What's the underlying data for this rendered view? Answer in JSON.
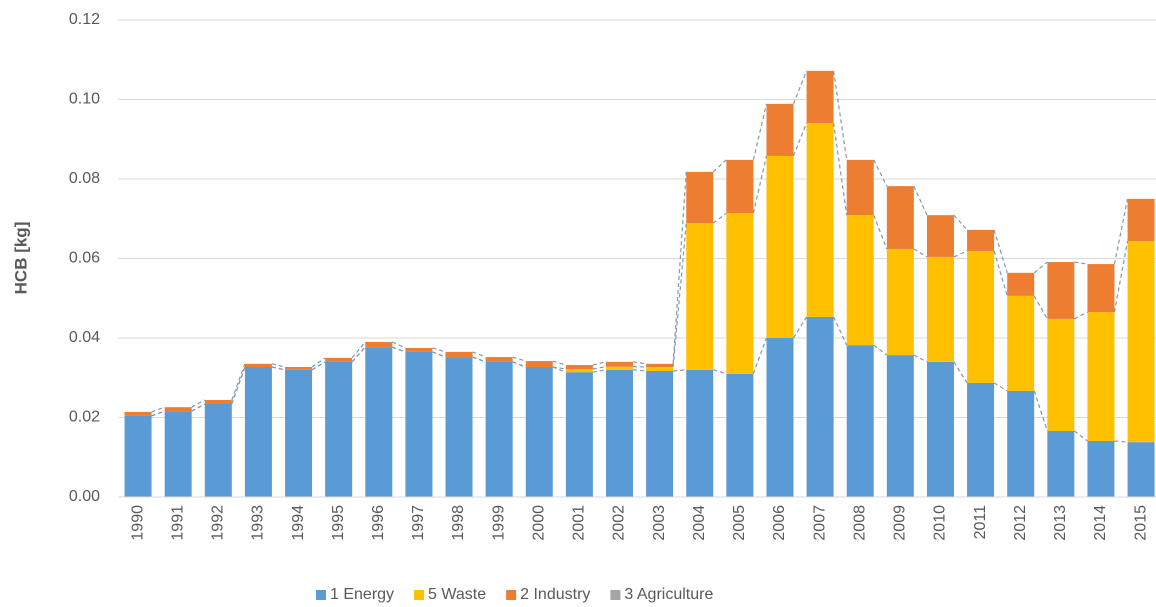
{
  "chart_data": {
    "type": "bar",
    "stacked": true,
    "y_label": "HCB [kg]",
    "categories": [
      "1990",
      "1991",
      "1992",
      "1993",
      "1994",
      "1995",
      "1996",
      "1997",
      "1998",
      "1999",
      "2000",
      "2001",
      "2002",
      "2003",
      "2004",
      "2005",
      "2006",
      "2007",
      "2008",
      "2009",
      "2010",
      "2011",
      "2012",
      "2013",
      "2014",
      "2015"
    ],
    "series": [
      {
        "name": "1 Energy",
        "color": "#5b9bd5",
        "values": [
          0.0204,
          0.0216,
          0.0234,
          0.0327,
          0.032,
          0.034,
          0.0377,
          0.0365,
          0.0352,
          0.034,
          0.0327,
          0.0314,
          0.032,
          0.0317,
          0.032,
          0.031,
          0.04,
          0.0453,
          0.0382,
          0.0357,
          0.034,
          0.0287,
          0.0267,
          0.0166,
          0.0141,
          0.0138
        ]
      },
      {
        "name": "5 Waste",
        "color": "#ffc000",
        "values": [
          0,
          0,
          0,
          0,
          0,
          0,
          0,
          0,
          0,
          0,
          0,
          0.0008,
          0.0008,
          0.001,
          0.0369,
          0.0404,
          0.0458,
          0.0488,
          0.0327,
          0.0267,
          0.0264,
          0.0332,
          0.0239,
          0.0282,
          0.0324,
          0.0506
        ]
      },
      {
        "name": "2 Industry",
        "color": "#ed7d31",
        "values": [
          0.001,
          0.001,
          0.001,
          0.0008,
          0.0007,
          0.001,
          0.0013,
          0.001,
          0.0013,
          0.0012,
          0.0015,
          0.001,
          0.0012,
          0.0008,
          0.0129,
          0.0134,
          0.0131,
          0.0131,
          0.0139,
          0.0158,
          0.0105,
          0.0053,
          0.0058,
          0.0143,
          0.0121,
          0.0106
        ]
      },
      {
        "name": "3 Agriculture",
        "color": "#a5a5a5",
        "values": [
          0,
          0,
          0,
          0,
          0,
          0,
          0,
          0,
          0,
          0,
          0,
          0,
          0,
          0,
          0,
          0,
          0,
          0,
          0,
          0,
          0,
          0,
          0,
          0,
          0,
          0
        ]
      }
    ],
    "ylim": [
      0,
      0.12
    ],
    "yticks": [
      {
        "value": 0,
        "label": "0.00"
      },
      {
        "value": 0.02,
        "label": "0.02"
      },
      {
        "value": 0.04,
        "label": "0.04"
      },
      {
        "value": 0.06,
        "label": "0.06"
      },
      {
        "value": 0.08,
        "label": "0.08"
      },
      {
        "value": 0.1,
        "label": "0.10"
      },
      {
        "value": 0.12,
        "label": "0.12"
      }
    ],
    "grid": true,
    "legend": "bottom",
    "series_lines": true
  }
}
